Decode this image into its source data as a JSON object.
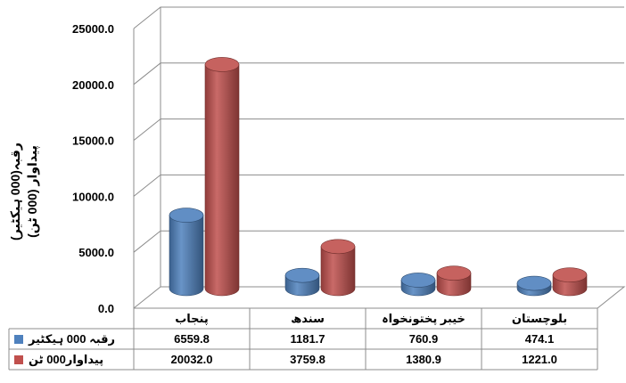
{
  "chart_data": {
    "type": "bar",
    "categories": [
      "پنجاب",
      "سندھ",
      "خیبر پختونخواہ",
      "بلوچستان"
    ],
    "series": [
      {
        "name": "رقبہ 000 ہیکٹیر",
        "values": [
          6559.8,
          1181.7,
          760.9,
          474.1
        ],
        "color": "#4f81bd"
      },
      {
        "name": "پیداوار000 ٹن",
        "values": [
          20032.0,
          3759.8,
          1380.9,
          1221.0
        ],
        "color": "#c0504d"
      }
    ],
    "ylabel_line1": "رقبہ(000 ہیکٹیر)",
    "ylabel_line2": "پیداوار (000 ٹن)",
    "ylim": [
      0,
      25000
    ],
    "yticks": [
      "0.0",
      "5000.0",
      "10000.0",
      "15000.0",
      "20000.0",
      "25000.0"
    ],
    "table_values": [
      [
        "6559.8",
        "1181.7",
        "760.9",
        "474.1"
      ],
      [
        "20032.0",
        "3759.8",
        "1380.9",
        "1221.0"
      ]
    ],
    "grid": true,
    "legend": "data-table"
  }
}
